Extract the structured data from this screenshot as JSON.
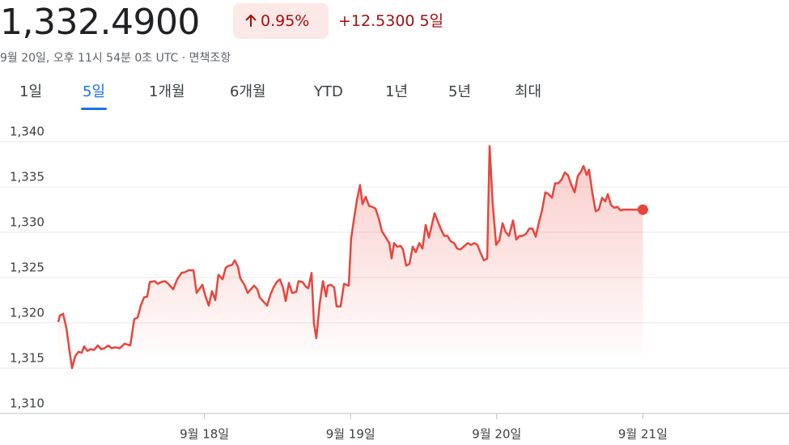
{
  "header": {
    "price": "1,332.4900",
    "change_pct": "0.95%",
    "change_abs": "+12.5300",
    "period": "5일",
    "timestamp": "9월 20일, 오후 11시 54분 0초 UTC · 면책조항"
  },
  "tabs": [
    "1일",
    "5일",
    "1개월",
    "6개월",
    "YTD",
    "1년",
    "5년",
    "최대"
  ],
  "selected_tab": 1,
  "chart_data": {
    "type": "line",
    "x": [
      17.0,
      17.011,
      17.033,
      17.055,
      17.078,
      17.094,
      17.116,
      17.138,
      17.161,
      17.177,
      17.199,
      17.221,
      17.244,
      17.271,
      17.293,
      17.316,
      17.343,
      17.365,
      17.388,
      17.421,
      17.454,
      17.493,
      17.52,
      17.543,
      17.565,
      17.587,
      17.609,
      17.626,
      17.659,
      17.681,
      17.703,
      17.731,
      17.753,
      17.786,
      17.814,
      17.842,
      17.869,
      17.891,
      17.925,
      17.947,
      17.986,
      18.008,
      18.03,
      18.052,
      18.074,
      18.096,
      18.124,
      18.146,
      18.168,
      18.19,
      18.207,
      18.229,
      18.246,
      18.274,
      18.296,
      18.318,
      18.34,
      18.362,
      18.379,
      18.406,
      18.429,
      18.451,
      18.473,
      18.495,
      18.517,
      18.539,
      18.556,
      18.578,
      18.6,
      18.628,
      18.644,
      18.672,
      18.694,
      18.711,
      18.733,
      18.75,
      18.766,
      18.788,
      18.811,
      18.833,
      18.844,
      18.866,
      18.888,
      18.905,
      18.932,
      18.955,
      18.988,
      19.004,
      19.021,
      19.043,
      19.065,
      19.082,
      19.104,
      19.126,
      19.148,
      19.171,
      19.193,
      19.215,
      19.242,
      19.265,
      19.281,
      19.298,
      19.32,
      19.342,
      19.359,
      19.381,
      19.403,
      19.425,
      19.447,
      19.47,
      19.492,
      19.514,
      19.536,
      19.553,
      19.575,
      19.597,
      19.619,
      19.641,
      19.663,
      19.685,
      19.708,
      19.73,
      19.752,
      19.78,
      19.802,
      19.824,
      19.846,
      19.868,
      19.89,
      19.912,
      19.935,
      19.951,
      19.973,
      19.996,
      20.018,
      20.04,
      20.062,
      20.084,
      20.112,
      20.134,
      20.156,
      20.178,
      20.2,
      20.223,
      20.245,
      20.267,
      20.289,
      20.311,
      20.333,
      20.355,
      20.378,
      20.4,
      20.422,
      20.444,
      20.466,
      20.488,
      20.511,
      20.533,
      20.555,
      20.577,
      20.594,
      20.616,
      20.632,
      20.654,
      20.677,
      20.699,
      20.721,
      20.743,
      20.76,
      20.782,
      20.804,
      20.826,
      20.848,
      20.87,
      21.0
    ],
    "series": [
      {
        "color": "#e8453c",
        "values": [
          1320.1,
          1320.8,
          1321.0,
          1319.5,
          1316.8,
          1315.0,
          1316.3,
          1316.8,
          1316.7,
          1317.4,
          1316.9,
          1317.1,
          1317.0,
          1317.5,
          1317.1,
          1317.2,
          1317.5,
          1317.2,
          1317.3,
          1317.2,
          1317.7,
          1317.5,
          1320.4,
          1320.6,
          1321.9,
          1322.8,
          1322.9,
          1324.5,
          1324.6,
          1324.3,
          1324.5,
          1324.6,
          1324.3,
          1323.7,
          1324.8,
          1325.5,
          1325.6,
          1325.8,
          1325.8,
          1323.3,
          1324.2,
          1322.9,
          1321.9,
          1323.5,
          1322.5,
          1325.3,
          1324.8,
          1326.1,
          1326.3,
          1326.4,
          1326.9,
          1326.2,
          1324.9,
          1324.2,
          1323.3,
          1323.7,
          1324.1,
          1323.7,
          1322.8,
          1322.3,
          1321.9,
          1323.1,
          1323.9,
          1324.5,
          1324.8,
          1323.8,
          1322.4,
          1324.4,
          1323.3,
          1323.4,
          1324.6,
          1324.5,
          1324.0,
          1323.8,
          1325.5,
          1319.9,
          1318.3,
          1322.0,
          1324.6,
          1322.9,
          1324.1,
          1324.2,
          1323.9,
          1321.8,
          1321.8,
          1324.3,
          1324.1,
          1329.3,
          1331.2,
          1333.5,
          1335.2,
          1333.1,
          1333.9,
          1332.9,
          1332.8,
          1332.6,
          1331.5,
          1330.1,
          1329.4,
          1328.8,
          1327.1,
          1328.8,
          1328.4,
          1328.5,
          1328.1,
          1326.3,
          1326.5,
          1328.4,
          1327.8,
          1328.8,
          1328.2,
          1330.8,
          1329.4,
          1330.6,
          1332.1,
          1331.2,
          1330.3,
          1329.6,
          1329.6,
          1329.0,
          1328.8,
          1328.2,
          1328.1,
          1328.5,
          1328.8,
          1328.6,
          1328.8,
          1328.6,
          1327.7,
          1326.9,
          1327.1,
          1339.5,
          1333.1,
          1328.6,
          1329.1,
          1331.0,
          1330.0,
          1329.6,
          1331.3,
          1329.2,
          1329.6,
          1329.6,
          1329.8,
          1330.4,
          1330.4,
          1329.5,
          1331.1,
          1332.5,
          1334.4,
          1334.2,
          1333.8,
          1335.4,
          1335.4,
          1335.8,
          1336.6,
          1336.3,
          1335.2,
          1334.4,
          1336.2,
          1336.7,
          1337.3,
          1336.3,
          1336.9,
          1334.4,
          1332.3,
          1332.5,
          1333.8,
          1333.4,
          1334.2,
          1333.0,
          1332.7,
          1332.8,
          1332.4,
          1332.5,
          1332.49
        ]
      }
    ],
    "xlim": [
      17,
      22
    ],
    "xticks": [
      {
        "value": 18,
        "label": "9월 18일"
      },
      {
        "value": 19,
        "label": "9월 19일"
      },
      {
        "value": 20,
        "label": "9월 20일"
      },
      {
        "value": 21,
        "label": "9월 21일"
      }
    ],
    "ylim": [
      1310,
      1340
    ],
    "yticks": [
      {
        "value": 1310,
        "label": "1,310"
      },
      {
        "value": 1315,
        "label": "1,315"
      },
      {
        "value": 1320,
        "label": "1,320"
      },
      {
        "value": 1325,
        "label": "1,325"
      },
      {
        "value": 1330,
        "label": "1,330"
      },
      {
        "value": 1335,
        "label": "1,335"
      },
      {
        "value": 1340,
        "label": "1,340"
      }
    ],
    "grid": true
  }
}
